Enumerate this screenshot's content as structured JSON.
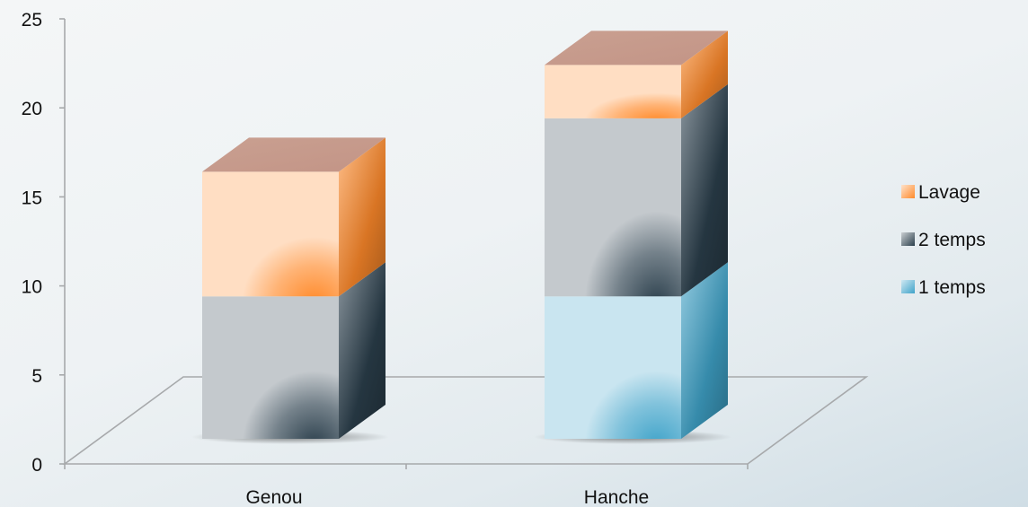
{
  "chart_data": {
    "type": "bar",
    "stacked": true,
    "three_d": true,
    "categories": [
      "Genou",
      "Hanche"
    ],
    "series": [
      {
        "name": "1 temps",
        "values": [
          0,
          8
        ],
        "color": "#3fa3c9"
      },
      {
        "name": "2 temps",
        "values": [
          8,
          10
        ],
        "color": "#2b3f4c"
      },
      {
        "name": "Lavage",
        "values": [
          7,
          3
        ],
        "color": "#ff8a2a"
      }
    ],
    "ylim": [
      0,
      25
    ],
    "yticks": [
      0,
      5,
      10,
      15,
      20,
      25
    ],
    "ytick_labels": [
      "0",
      "5",
      "10",
      "15",
      "20",
      "25"
    ],
    "grid": false,
    "legend": {
      "position": "right",
      "order": [
        "Lavage",
        "2 temps",
        "1 temps"
      ]
    }
  }
}
